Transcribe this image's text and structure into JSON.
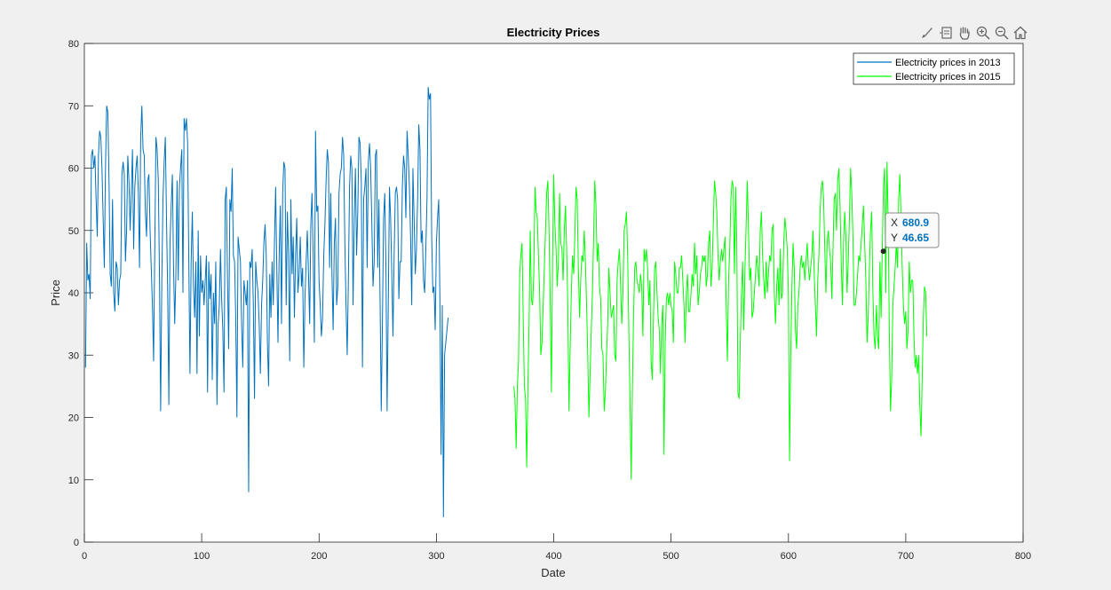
{
  "chart_data": {
    "type": "line",
    "title": "Electricity Prices",
    "xlabel": "Date",
    "ylabel": "Price",
    "xlim": [
      0,
      800
    ],
    "ylim": [
      0,
      80
    ],
    "xticks": [
      "0",
      "100",
      "200",
      "300",
      "400",
      "500",
      "600",
      "700",
      "800"
    ],
    "yticks": [
      "0",
      "10",
      "20",
      "30",
      "40",
      "50",
      "60",
      "70",
      "80"
    ],
    "grid": false,
    "legend_position": "top-right",
    "series": [
      {
        "name": "Electricity prices in 2013",
        "color": "#0072bd",
        "x_start": 1,
        "y": [
          28,
          48,
          42,
          43,
          39,
          62,
          63,
          60,
          62,
          55,
          49,
          62,
          66,
          65,
          60,
          52,
          44,
          60,
          70,
          69,
          58,
          43,
          41,
          55,
          40,
          37,
          45,
          44,
          38,
          42,
          43,
          59,
          61,
          59,
          45,
          50,
          62,
          58,
          50,
          56,
          63,
          47,
          57,
          60,
          62,
          56,
          44,
          65,
          70,
          63,
          62,
          53,
          49,
          58,
          59,
          50,
          44,
          38,
          29,
          47,
          65,
          63,
          58,
          43,
          21,
          42,
          55,
          61,
          65,
          52,
          40,
          22,
          48,
          54,
          59,
          44,
          35,
          43,
          58,
          42,
          57,
          60,
          63,
          40,
          68,
          66,
          68,
          64,
          45,
          27,
          45,
          53,
          41,
          36,
          45,
          27,
          50,
          33,
          46,
          40,
          42,
          38,
          42,
          46,
          24,
          45,
          39,
          43,
          26,
          40,
          35,
          45,
          22,
          35,
          38,
          47,
          39,
          34,
          24,
          55,
          57,
          42,
          31,
          55,
          53,
          60,
          46,
          45,
          36,
          20,
          49,
          47,
          45,
          35,
          28,
          42,
          40,
          38,
          42,
          8,
          45,
          44,
          47,
          38,
          23,
          45,
          42,
          40,
          35,
          27,
          38,
          42,
          48,
          51,
          46,
          32,
          25,
          43,
          36,
          45,
          38,
          48,
          57,
          44,
          32,
          46,
          54,
          35,
          56,
          61,
          60,
          38,
          53,
          46,
          29,
          55,
          43,
          49,
          36,
          46,
          52,
          40,
          43,
          49,
          41,
          44,
          28,
          39,
          45,
          50,
          43,
          35,
          51,
          56,
          46,
          32,
          66,
          53,
          54,
          42,
          38,
          33,
          36,
          46,
          51,
          58,
          63,
          61,
          44,
          56,
          43,
          34,
          48,
          52,
          38,
          41,
          56,
          59,
          60,
          65,
          62,
          48,
          38,
          30,
          42,
          57,
          62,
          60,
          38,
          52,
          60,
          46,
          53,
          65,
          64,
          58,
          28,
          55,
          57,
          60,
          44,
          61,
          64,
          60,
          51,
          41,
          45,
          62,
          63,
          44,
          55,
          39,
          21,
          35,
          52,
          56,
          44,
          21,
          38,
          57,
          52,
          43,
          33,
          46,
          56,
          57,
          55,
          39,
          45,
          45,
          57,
          62,
          60,
          52,
          66,
          62,
          57,
          49,
          38,
          60,
          52,
          43,
          47,
          55,
          67,
          63,
          48,
          50,
          42,
          40,
          47,
          55,
          73,
          71,
          72,
          49,
          40,
          41,
          34,
          48,
          52,
          55,
          39,
          14,
          38,
          4,
          30,
          32,
          34,
          36
        ]
      },
      {
        "name": "Electricity prices in 2015",
        "color": "#00ff00",
        "x_start": 366,
        "y": [
          25,
          23,
          15,
          25,
          29,
          43,
          46,
          48,
          36,
          25,
          23,
          12,
          25,
          35,
          50,
          39,
          38,
          43,
          57,
          53,
          52,
          46,
          40,
          30,
          32,
          38,
          44,
          50,
          56,
          58,
          50,
          39,
          24,
          45,
          59,
          51,
          47,
          41,
          45,
          56,
          48,
          47,
          42,
          50,
          54,
          47,
          38,
          21,
          31,
          40,
          46,
          43,
          49,
          57,
          55,
          44,
          36,
          42,
          46,
          45,
          50,
          45,
          38,
          30,
          20,
          27,
          34,
          40,
          49,
          58,
          54,
          45,
          48,
          41,
          39,
          31,
          30,
          21,
          24,
          30,
          35,
          44,
          40,
          36,
          37,
          38,
          30,
          29,
          42,
          45,
          47,
          41,
          35,
          40,
          50,
          51,
          53,
          46,
          34,
          23,
          10,
          24,
          36,
          44,
          45,
          42,
          41,
          40,
          43,
          41,
          33,
          47,
          45,
          47,
          44,
          38,
          42,
          29,
          26,
          36,
          44,
          45,
          40,
          36,
          34,
          27,
          35,
          38,
          14,
          32,
          39,
          40,
          38,
          40,
          38,
          37,
          32,
          45,
          43,
          40,
          40,
          44,
          44,
          46,
          42,
          38,
          32,
          40,
          43,
          37,
          37,
          40,
          43,
          41,
          48,
          43,
          46,
          38,
          40,
          43,
          44,
          46,
          45,
          46,
          41,
          43,
          48,
          50,
          41,
          44,
          51,
          58,
          56,
          53,
          46,
          42,
          45,
          47,
          45,
          47,
          49,
          38,
          29,
          42,
          47,
          55,
          58,
          57,
          43,
          57,
          48,
          24,
          23,
          32,
          40,
          45,
          34,
          44,
          51,
          58,
          50,
          42,
          44,
          36,
          37,
          40,
          43,
          46,
          44,
          41,
          50,
          53,
          46,
          42,
          39,
          45,
          40,
          43,
          46,
          45,
          50,
          51,
          40,
          35,
          41,
          44,
          38,
          47,
          39,
          40,
          48,
          52,
          50,
          47,
          40,
          13,
          30,
          41,
          48,
          44,
          34,
          31,
          38,
          40,
          44,
          46,
          44,
          45,
          42,
          45,
          48,
          44,
          42,
          44,
          46,
          50,
          43,
          38,
          33,
          42,
          46,
          53,
          57,
          58,
          55,
          47,
          40,
          48,
          50,
          47,
          45,
          39,
          47,
          55,
          56,
          50,
          58,
          60,
          54,
          45,
          38,
          48,
          53,
          49,
          40,
          45,
          52,
          60,
          56,
          49,
          38,
          38,
          40,
          43,
          46,
          45,
          48,
          51,
          54,
          48,
          42,
          32,
          36,
          44,
          50,
          53,
          40,
          33,
          31,
          38,
          33,
          31,
          45,
          36,
          47,
          57,
          60,
          40,
          61,
          52,
          34,
          21,
          26,
          38,
          41,
          44,
          48,
          44,
          55,
          59,
          52,
          44,
          38,
          35,
          37,
          31,
          34,
          45,
          40,
          42,
          42,
          33,
          28,
          30,
          27,
          30,
          22,
          17,
          26,
          36,
          41,
          40,
          33
        ]
      }
    ],
    "datatip": {
      "x_label": "X",
      "y_label": "Y",
      "x": "680.9",
      "y": "46.65"
    }
  },
  "toolbar": {
    "icons": [
      "brush-icon",
      "datatip-icon",
      "pan-hand-icon",
      "zoom-in-icon",
      "zoom-out-icon",
      "home-icon"
    ]
  }
}
